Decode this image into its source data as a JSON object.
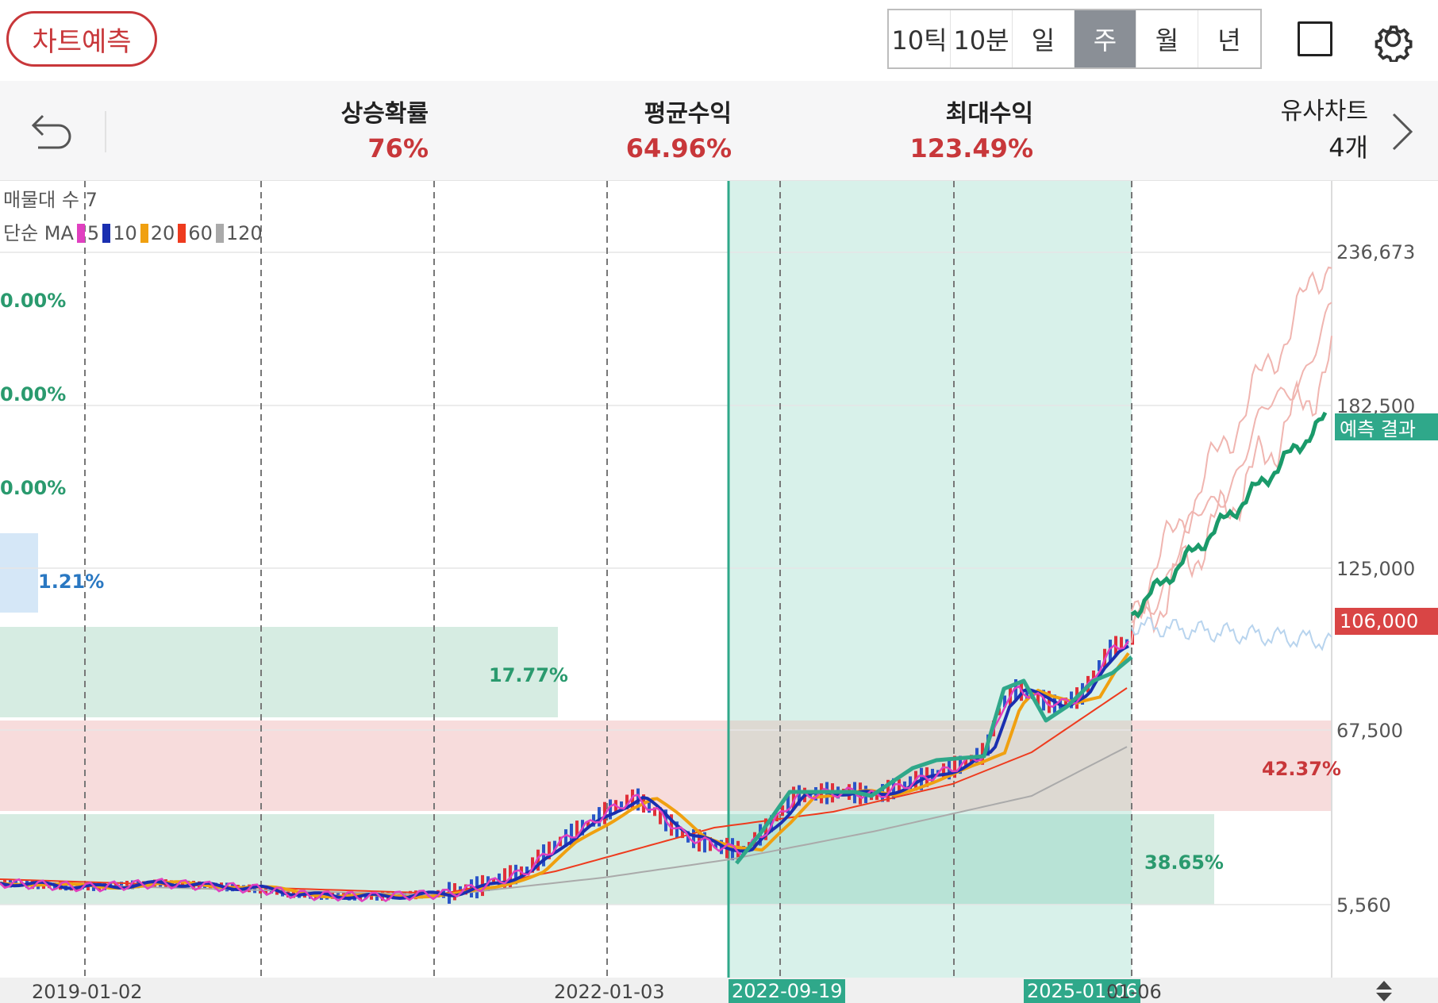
{
  "header": {
    "predict_button": "차트예측",
    "periods": [
      "10틱",
      "10분",
      "일",
      "주",
      "월",
      "년"
    ],
    "active_period": "주"
  },
  "stats": {
    "rise_prob_label": "상승확률",
    "rise_prob_value": "76%",
    "avg_return_label": "평균수익",
    "avg_return_value": "64.96%",
    "max_return_label": "최대수익",
    "max_return_value": "123.49%",
    "similar_label": "유사차트",
    "similar_value": "4개"
  },
  "legend": {
    "volume_profile": "매물대 수 7",
    "ma_label": "단순 MA",
    "ma_periods": [
      "5",
      "10",
      "20",
      "60",
      "120"
    ],
    "ma_colors": [
      "#e040c0",
      "#1a2fb0",
      "#f0a010",
      "#ee3b1e",
      "#aaaaaa"
    ]
  },
  "volume_zones": [
    {
      "label": "0.00%",
      "color": "#2a9a6e"
    },
    {
      "label": "0.00%",
      "color": "#2a9a6e"
    },
    {
      "label": "0.00%",
      "color": "#2a9a6e"
    },
    {
      "label": "1.21%",
      "color": "#2a78c2"
    },
    {
      "label": "17.77%",
      "color": "#2a9a6e"
    },
    {
      "label": "42.37%",
      "color": "#c8373a"
    },
    {
      "label": "38.65%",
      "color": "#2a9a6e"
    }
  ],
  "y_axis": [
    "236,673",
    "182,500",
    "125,000",
    "67,500",
    "5,560"
  ],
  "current_price": "106,000",
  "prediction_tag": "예측 결과",
  "x_axis": {
    "start": "2019-01-02",
    "mid": "2022-01-03",
    "sel_start": "2022-09-19",
    "sel_end": "2025-01-06",
    "after": "01-06"
  },
  "colors": {
    "red": "#c8373a",
    "green": "#2fa88a",
    "predicted": "#1a9a6a"
  }
}
